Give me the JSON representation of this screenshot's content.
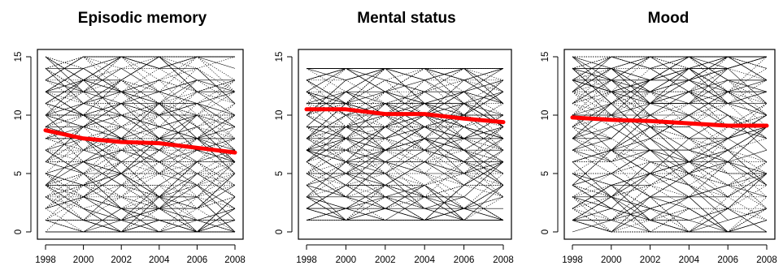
{
  "chart_data": [
    {
      "type": "line",
      "title": "Episodic memory",
      "xlabel": "",
      "ylabel": "",
      "x": [
        1998,
        2000,
        2002,
        2004,
        2006,
        2008
      ],
      "x_ticks": [
        "1998",
        "2000",
        "2002",
        "2004",
        "2006",
        "2008"
      ],
      "y_ticks": [
        "0",
        "5",
        "10",
        "15"
      ],
      "xlim": [
        1998,
        2008
      ],
      "ylim": [
        0,
        15
      ],
      "series": [
        {
          "values": [
            8.7,
            8.0,
            7.7,
            7.6,
            7.2,
            6.8
          ],
          "color": "#ff0000"
        }
      ],
      "individual_trajectories": {
        "y_range": [
          0,
          15
        ],
        "style": "dotted and solid thin black lines"
      },
      "grid": false,
      "legend": "none"
    },
    {
      "type": "line",
      "title": "Mental status",
      "xlabel": "",
      "ylabel": "",
      "x": [
        1998,
        2000,
        2002,
        2004,
        2006,
        2008
      ],
      "x_ticks": [
        "1998",
        "2000",
        "2002",
        "2004",
        "2006",
        "2008"
      ],
      "y_ticks": [
        "0",
        "5",
        "10",
        "15"
      ],
      "xlim": [
        1998,
        2008
      ],
      "ylim": [
        0,
        15
      ],
      "series": [
        {
          "values": [
            10.5,
            10.5,
            10.1,
            10.1,
            9.7,
            9.4
          ],
          "color": "#ff0000"
        }
      ],
      "individual_trajectories": {
        "y_range": [
          1,
          14
        ],
        "style": "dotted and solid thin black lines"
      },
      "grid": false,
      "legend": "none"
    },
    {
      "type": "line",
      "title": "Mood",
      "xlabel": "",
      "ylabel": "",
      "x": [
        1998,
        2000,
        2002,
        2004,
        2006,
        2008
      ],
      "x_ticks": [
        "1998",
        "2000",
        "2002",
        "2004",
        "2006",
        "2008"
      ],
      "y_ticks": [
        "0",
        "5",
        "10",
        "15"
      ],
      "xlim": [
        1998,
        2008
      ],
      "ylim": [
        0,
        15
      ],
      "series": [
        {
          "values": [
            9.8,
            9.6,
            9.5,
            9.3,
            9.1,
            9.1
          ],
          "color": "#ff0000"
        }
      ],
      "individual_trajectories": {
        "y_range": [
          0,
          15
        ],
        "style": "dotted and solid thin black lines"
      },
      "grid": false,
      "legend": "none"
    }
  ]
}
